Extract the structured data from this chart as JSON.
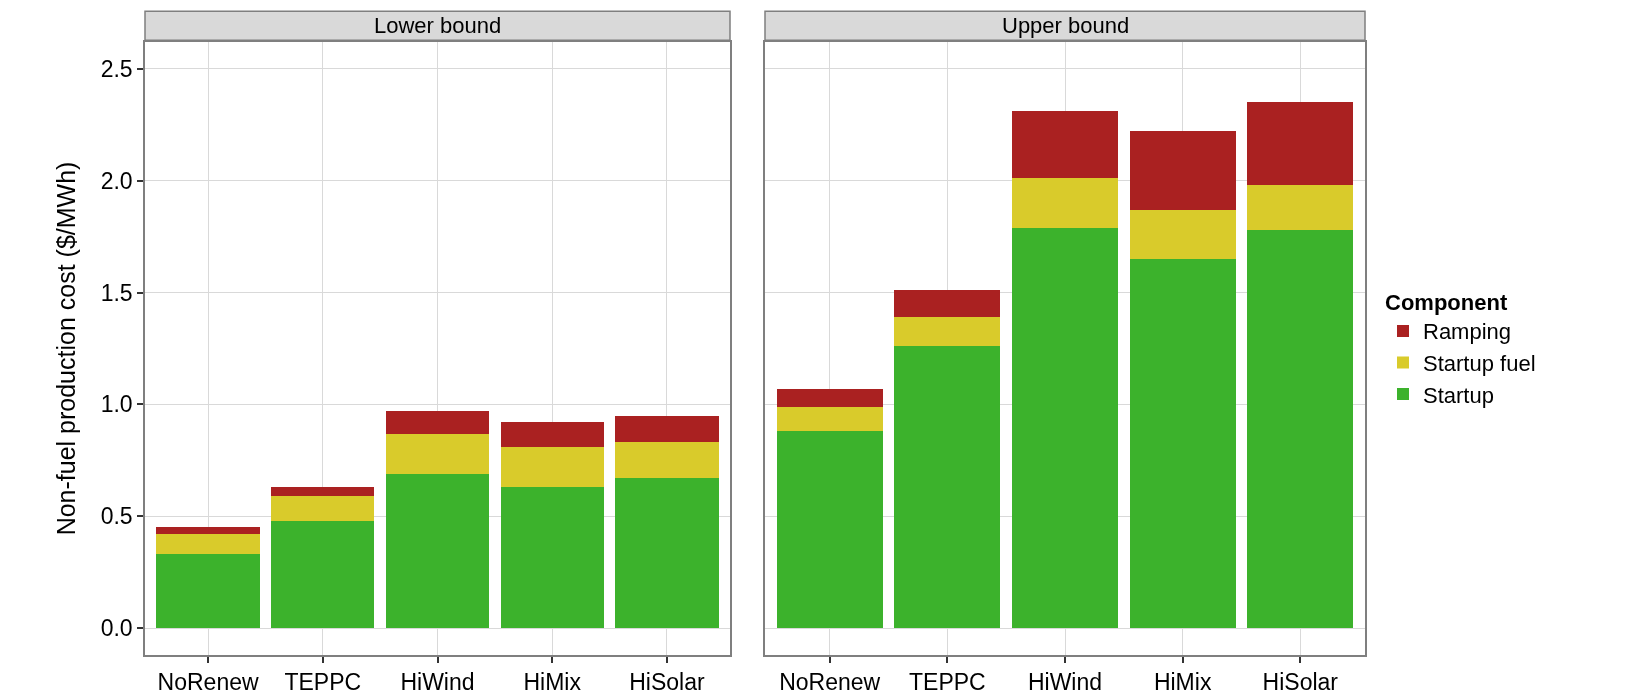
{
  "chart_data": [
    {
      "type": "bar",
      "stacked": true,
      "title": "Lower bound",
      "ylabel": "Non-fuel production cost ($/MWh)",
      "categories": [
        "NoRenew",
        "TEPPC",
        "HiWind",
        "HiMix",
        "HiSolar"
      ],
      "ylim": [
        -0.12,
        2.62
      ],
      "yticks": [
        {
          "value": 0,
          "label": "0.0"
        },
        {
          "value": 0.5,
          "label": "0.5"
        },
        {
          "value": 1,
          "label": "1.0"
        },
        {
          "value": 1.5,
          "label": "1.5"
        },
        {
          "value": 2,
          "label": "2.0"
        },
        {
          "value": 2.5,
          "label": "2.5"
        }
      ],
      "grid": true,
      "legend": false,
      "series": [
        {
          "color": "#3cb22c",
          "values": [
            0.33,
            0.48,
            0.69,
            0.63,
            0.67
          ]
        },
        {
          "color": "#d9cb2b",
          "values": [
            0.09,
            0.11,
            0.18,
            0.18,
            0.16
          ]
        },
        {
          "color": "#aa2121",
          "values": [
            0.03,
            0.04,
            0.1,
            0.11,
            0.12
          ]
        }
      ]
    },
    {
      "type": "bar",
      "stacked": true,
      "title": "Upper bound",
      "legend_title": "Component",
      "categories": [
        "NoRenew",
        "TEPPC",
        "HiWind",
        "HiMix",
        "HiSolar"
      ],
      "ylim": [
        -0.12,
        2.62
      ],
      "yticks": [
        {
          "value": 0,
          "label": null
        },
        {
          "value": 0.5,
          "label": null
        },
        {
          "value": 1,
          "label": null
        },
        {
          "value": 1.5,
          "label": null
        },
        {
          "value": 2,
          "label": null
        },
        {
          "value": 2.5,
          "label": null
        }
      ],
      "tick_labels": "x",
      "grid": true,
      "legend": "right",
      "series": [
        {
          "name": "Startup",
          "color": "#3cb22c",
          "values": [
            0.88,
            1.26,
            1.79,
            1.65,
            1.78
          ]
        },
        {
          "name": "Startup fuel",
          "color": "#d9cb2b",
          "values": [
            0.11,
            0.13,
            0.22,
            0.22,
            0.2
          ]
        },
        {
          "name": "Ramping",
          "color": "#aa2121",
          "values": [
            0.08,
            0.12,
            0.3,
            0.35,
            0.37
          ]
        }
      ]
    }
  ]
}
